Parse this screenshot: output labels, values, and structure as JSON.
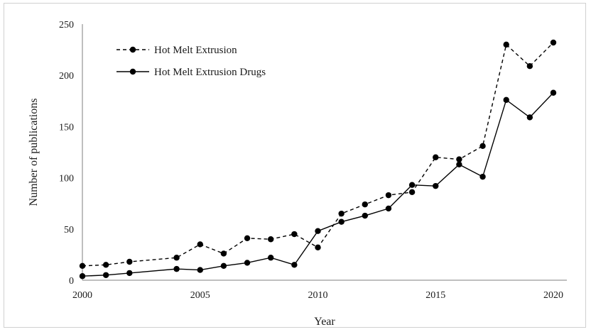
{
  "chart_data": {
    "type": "line",
    "title": "",
    "xlabel": "Year",
    "ylabel": "Number of publications",
    "xlim": [
      2000,
      2021
    ],
    "ylim": [
      0,
      250
    ],
    "x_ticks": [
      2000,
      2005,
      2010,
      2015,
      2020
    ],
    "y_ticks": [
      0,
      50,
      100,
      150,
      200,
      250
    ],
    "grid": false,
    "legend_position": "top-left",
    "series": [
      {
        "name": "Hot Melt Extrusion",
        "line_style": "dashed",
        "color": "#000000",
        "x": [
          2000,
          2001,
          2002,
          2004,
          2005,
          2006,
          2007,
          2008,
          2009,
          2010,
          2011,
          2012,
          2013,
          2014,
          2015,
          2016,
          2017,
          2018,
          2019,
          2020
        ],
        "y": [
          14,
          15,
          18,
          22,
          35,
          26,
          41,
          40,
          45,
          32,
          65,
          74,
          83,
          86,
          120,
          118,
          131,
          230,
          209,
          232
        ]
      },
      {
        "name": "Hot Melt Extrusion Drugs",
        "line_style": "solid",
        "color": "#000000",
        "x": [
          2000,
          2001,
          2002,
          2004,
          2005,
          2006,
          2007,
          2008,
          2009,
          2010,
          2011,
          2012,
          2013,
          2014,
          2015,
          2016,
          2017,
          2018,
          2019,
          2020
        ],
        "y": [
          4,
          5,
          7,
          11,
          10,
          14,
          17,
          22,
          15,
          48,
          57,
          63,
          70,
          93,
          92,
          113,
          101,
          176,
          159,
          183
        ]
      }
    ]
  }
}
